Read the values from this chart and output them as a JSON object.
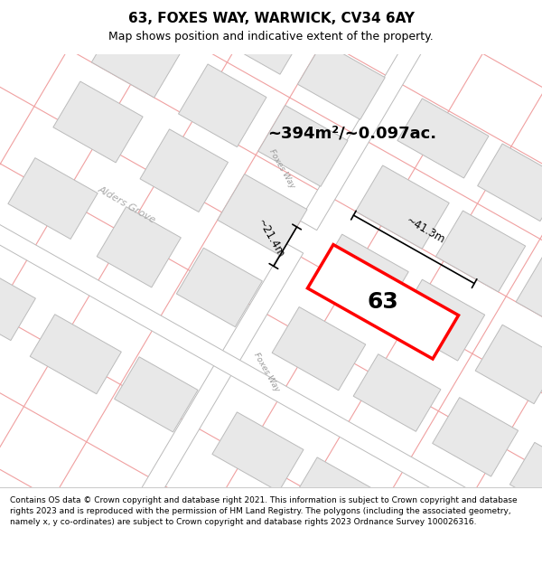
{
  "title": "63, FOXES WAY, WARWICK, CV34 6AY",
  "subtitle": "Map shows position and indicative extent of the property.",
  "footer": "Contains OS data © Crown copyright and database right 2021. This information is subject to Crown copyright and database rights 2023 and is reproduced with the permission of HM Land Registry. The polygons (including the associated geometry, namely x, y co-ordinates) are subject to Crown copyright and database rights 2023 Ordnance Survey 100026316.",
  "plot_label": "63",
  "area_text": "~394m²/~0.097ac.",
  "width_text": "~41.3m",
  "height_text": "~21.4m",
  "street_label_foxes_top": "Foxes Way",
  "street_label_foxes_bot": "Foxes Way",
  "street_label_alders": "Alders Grove",
  "map_bg": "#ffffff",
  "building_fc": "#e8e8e8",
  "building_ec": "#bbbbbb",
  "road_line_color": "#f0a0a0",
  "road_band_fc": "#ffffff",
  "road_band_ec": "#cccccc",
  "plot_ec": "#ff0000",
  "plot_fc": "#ffffff",
  "title_fs": 11,
  "subtitle_fs": 9,
  "area_fs": 13,
  "label_fs": 18,
  "footer_fs": 6.5,
  "dim_fs": 8.5
}
